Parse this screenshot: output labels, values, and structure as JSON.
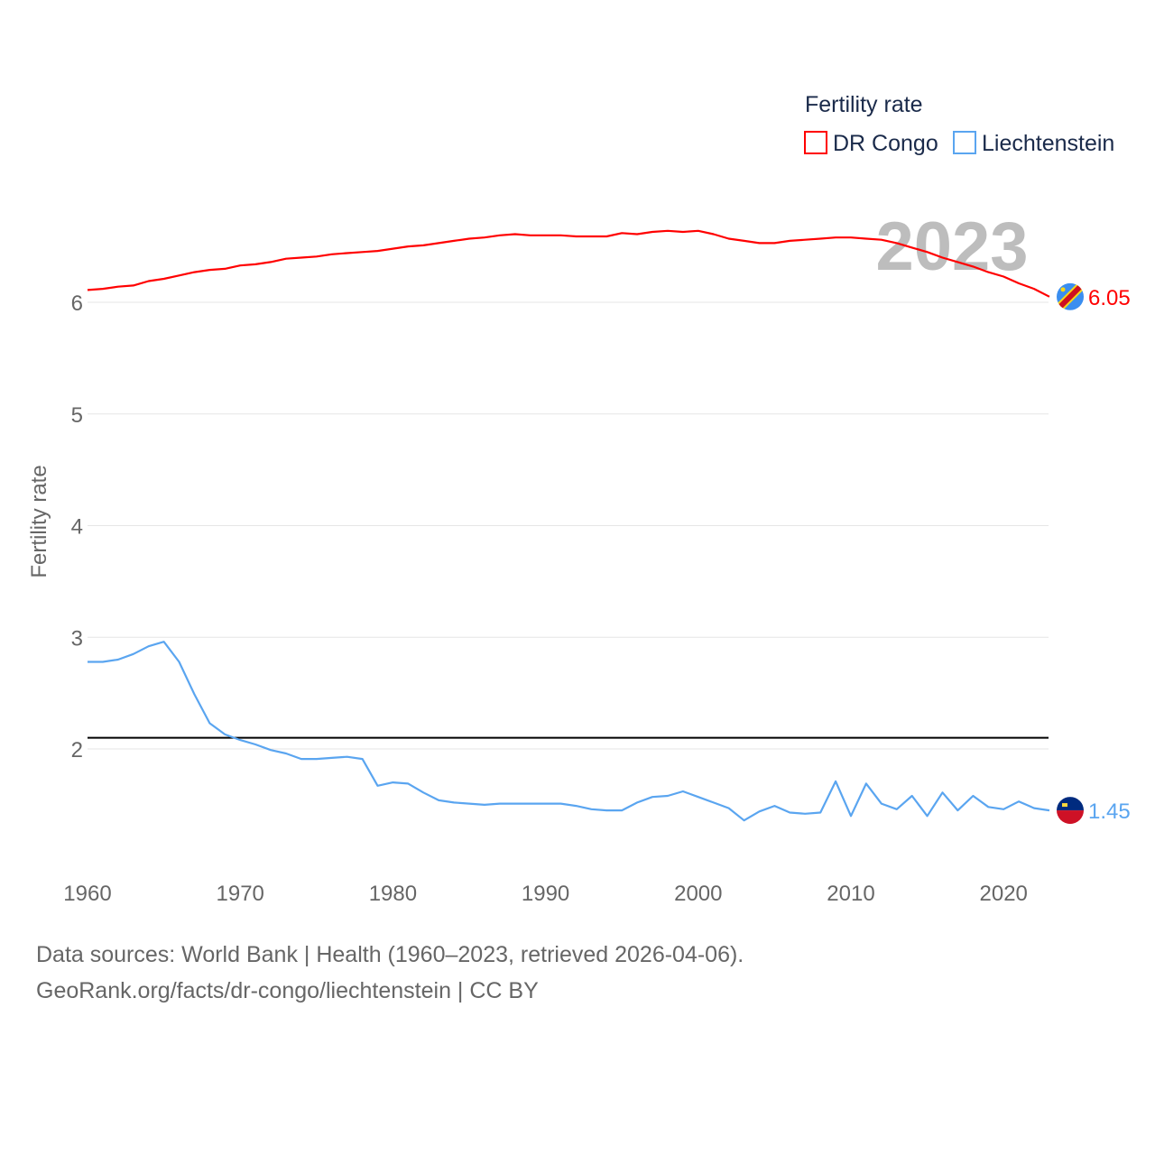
{
  "chart_data": {
    "type": "line",
    "title": "",
    "ylabel": "Fertility rate",
    "xlabel": "",
    "legend_title": "Fertility rate",
    "legend_position": "top-right",
    "year_label": "2023",
    "xlim": [
      1960,
      2023
    ],
    "ylim": [
      1,
      6.5
    ],
    "x_ticks": [
      "1960",
      "1970",
      "1980",
      "1990",
      "2000",
      "2010",
      "2020"
    ],
    "y_ticks": [
      "2",
      "3",
      "4",
      "5",
      "6"
    ],
    "grid": true,
    "reference_line": {
      "value": 2.1,
      "color": "#000000"
    },
    "x": [
      1960,
      1961,
      1962,
      1963,
      1964,
      1965,
      1966,
      1967,
      1968,
      1969,
      1970,
      1971,
      1972,
      1973,
      1974,
      1975,
      1976,
      1977,
      1978,
      1979,
      1980,
      1981,
      1982,
      1983,
      1984,
      1985,
      1986,
      1987,
      1988,
      1989,
      1990,
      1991,
      1992,
      1993,
      1994,
      1995,
      1996,
      1997,
      1998,
      1999,
      2000,
      2001,
      2002,
      2003,
      2004,
      2005,
      2006,
      2007,
      2008,
      2009,
      2010,
      2011,
      2012,
      2013,
      2014,
      2015,
      2016,
      2017,
      2018,
      2019,
      2020,
      2021,
      2022,
      2023
    ],
    "series": [
      {
        "name": "DR Congo",
        "color": "#ff0000",
        "end_label": "6.05",
        "flag": "dr-congo-flag",
        "values": [
          6.11,
          6.12,
          6.14,
          6.15,
          6.19,
          6.21,
          6.24,
          6.27,
          6.29,
          6.3,
          6.33,
          6.34,
          6.36,
          6.39,
          6.4,
          6.41,
          6.43,
          6.44,
          6.45,
          6.46,
          6.48,
          6.5,
          6.51,
          6.53,
          6.55,
          6.57,
          6.58,
          6.6,
          6.61,
          6.6,
          6.6,
          6.6,
          6.59,
          6.59,
          6.59,
          6.62,
          6.61,
          6.63,
          6.64,
          6.63,
          6.64,
          6.61,
          6.57,
          6.55,
          6.53,
          6.53,
          6.55,
          6.56,
          6.57,
          6.58,
          6.58,
          6.57,
          6.56,
          6.53,
          6.49,
          6.45,
          6.4,
          6.36,
          6.32,
          6.27,
          6.23,
          6.17,
          6.12,
          6.05
        ]
      },
      {
        "name": "Liechtenstein",
        "color": "#5aa5f0",
        "end_label": "1.45",
        "flag": "liechtenstein-flag",
        "values": [
          2.78,
          2.78,
          2.8,
          2.85,
          2.92,
          2.96,
          2.78,
          2.49,
          2.23,
          2.13,
          2.08,
          2.04,
          1.99,
          1.96,
          1.91,
          1.91,
          1.92,
          1.93,
          1.91,
          1.67,
          1.7,
          1.69,
          1.61,
          1.54,
          1.52,
          1.51,
          1.5,
          1.51,
          1.51,
          1.51,
          1.51,
          1.51,
          1.49,
          1.46,
          1.45,
          1.45,
          1.52,
          1.57,
          1.58,
          1.62,
          1.57,
          1.52,
          1.47,
          1.36,
          1.44,
          1.49,
          1.43,
          1.42,
          1.43,
          1.71,
          1.4,
          1.69,
          1.51,
          1.46,
          1.58,
          1.4,
          1.61,
          1.45,
          1.58,
          1.48,
          1.46,
          1.53,
          1.47,
          1.45
        ]
      }
    ]
  },
  "footer": {
    "line1": "Data sources: World Bank | Health (1960–2023, retrieved 2026-04-06).",
    "line2": "GeoRank.org/facts/dr-congo/liechtenstein | CC BY"
  }
}
